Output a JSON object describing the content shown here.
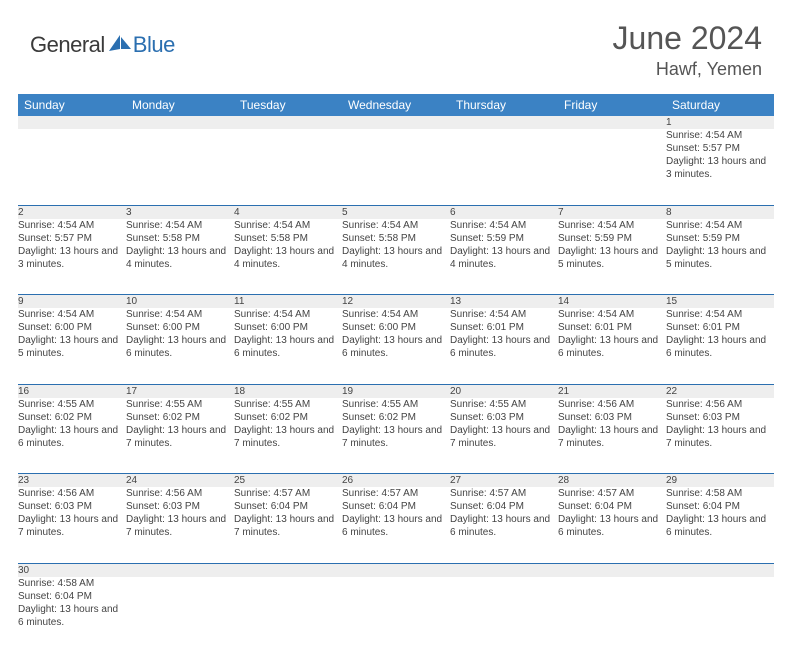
{
  "brand": {
    "part1": "General",
    "part2": "Blue",
    "color_gen": "#3a3a3a",
    "color_blue": "#2b6fb0"
  },
  "title": "June 2024",
  "location": "Hawf, Yemen",
  "header_bg": "#3b82c4",
  "header_fg": "#ffffff",
  "daynum_bg": "#eeeeee",
  "border_color": "#2b6fb0",
  "weekdays": [
    "Sunday",
    "Monday",
    "Tuesday",
    "Wednesday",
    "Thursday",
    "Friday",
    "Saturday"
  ],
  "first_weekday_index": 6,
  "days": [
    {
      "n": 1,
      "sr": "4:54 AM",
      "ss": "5:57 PM",
      "dl": "13 hours and 3 minutes."
    },
    {
      "n": 2,
      "sr": "4:54 AM",
      "ss": "5:57 PM",
      "dl": "13 hours and 3 minutes."
    },
    {
      "n": 3,
      "sr": "4:54 AM",
      "ss": "5:58 PM",
      "dl": "13 hours and 4 minutes."
    },
    {
      "n": 4,
      "sr": "4:54 AM",
      "ss": "5:58 PM",
      "dl": "13 hours and 4 minutes."
    },
    {
      "n": 5,
      "sr": "4:54 AM",
      "ss": "5:58 PM",
      "dl": "13 hours and 4 minutes."
    },
    {
      "n": 6,
      "sr": "4:54 AM",
      "ss": "5:59 PM",
      "dl": "13 hours and 4 minutes."
    },
    {
      "n": 7,
      "sr": "4:54 AM",
      "ss": "5:59 PM",
      "dl": "13 hours and 5 minutes."
    },
    {
      "n": 8,
      "sr": "4:54 AM",
      "ss": "5:59 PM",
      "dl": "13 hours and 5 minutes."
    },
    {
      "n": 9,
      "sr": "4:54 AM",
      "ss": "6:00 PM",
      "dl": "13 hours and 5 minutes."
    },
    {
      "n": 10,
      "sr": "4:54 AM",
      "ss": "6:00 PM",
      "dl": "13 hours and 6 minutes."
    },
    {
      "n": 11,
      "sr": "4:54 AM",
      "ss": "6:00 PM",
      "dl": "13 hours and 6 minutes."
    },
    {
      "n": 12,
      "sr": "4:54 AM",
      "ss": "6:00 PM",
      "dl": "13 hours and 6 minutes."
    },
    {
      "n": 13,
      "sr": "4:54 AM",
      "ss": "6:01 PM",
      "dl": "13 hours and 6 minutes."
    },
    {
      "n": 14,
      "sr": "4:54 AM",
      "ss": "6:01 PM",
      "dl": "13 hours and 6 minutes."
    },
    {
      "n": 15,
      "sr": "4:54 AM",
      "ss": "6:01 PM",
      "dl": "13 hours and 6 minutes."
    },
    {
      "n": 16,
      "sr": "4:55 AM",
      "ss": "6:02 PM",
      "dl": "13 hours and 6 minutes."
    },
    {
      "n": 17,
      "sr": "4:55 AM",
      "ss": "6:02 PM",
      "dl": "13 hours and 7 minutes."
    },
    {
      "n": 18,
      "sr": "4:55 AM",
      "ss": "6:02 PM",
      "dl": "13 hours and 7 minutes."
    },
    {
      "n": 19,
      "sr": "4:55 AM",
      "ss": "6:02 PM",
      "dl": "13 hours and 7 minutes."
    },
    {
      "n": 20,
      "sr": "4:55 AM",
      "ss": "6:03 PM",
      "dl": "13 hours and 7 minutes."
    },
    {
      "n": 21,
      "sr": "4:56 AM",
      "ss": "6:03 PM",
      "dl": "13 hours and 7 minutes."
    },
    {
      "n": 22,
      "sr": "4:56 AM",
      "ss": "6:03 PM",
      "dl": "13 hours and 7 minutes."
    },
    {
      "n": 23,
      "sr": "4:56 AM",
      "ss": "6:03 PM",
      "dl": "13 hours and 7 minutes."
    },
    {
      "n": 24,
      "sr": "4:56 AM",
      "ss": "6:03 PM",
      "dl": "13 hours and 7 minutes."
    },
    {
      "n": 25,
      "sr": "4:57 AM",
      "ss": "6:04 PM",
      "dl": "13 hours and 7 minutes."
    },
    {
      "n": 26,
      "sr": "4:57 AM",
      "ss": "6:04 PM",
      "dl": "13 hours and 6 minutes."
    },
    {
      "n": 27,
      "sr": "4:57 AM",
      "ss": "6:04 PM",
      "dl": "13 hours and 6 minutes."
    },
    {
      "n": 28,
      "sr": "4:57 AM",
      "ss": "6:04 PM",
      "dl": "13 hours and 6 minutes."
    },
    {
      "n": 29,
      "sr": "4:58 AM",
      "ss": "6:04 PM",
      "dl": "13 hours and 6 minutes."
    },
    {
      "n": 30,
      "sr": "4:58 AM",
      "ss": "6:04 PM",
      "dl": "13 hours and 6 minutes."
    }
  ],
  "labels": {
    "sunrise": "Sunrise:",
    "sunset": "Sunset:",
    "daylight": "Daylight:"
  }
}
